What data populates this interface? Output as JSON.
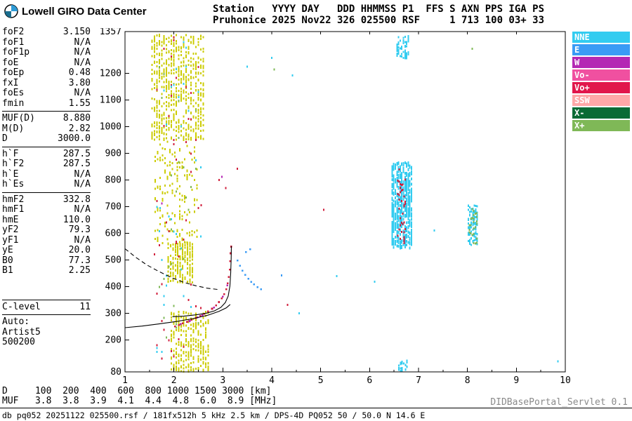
{
  "header": {
    "logo_text": "Lowell GIRO Data Center",
    "line1": "Station   YYYY DAY   DDD HHMMSS P1  FFS S AXN PPS IGA PS",
    "line2": "Pruhonice 2025 Nov22 326 025500 RSF     1 713 100 03+ 33"
  },
  "parameters": {
    "groups": [
      {
        "divider_before": false,
        "divider_after": true,
        "gap_before": false,
        "rows": [
          {
            "label": "foF2",
            "value": "3.150"
          },
          {
            "label": "foF1",
            "value": "N/A"
          },
          {
            "label": "foF1p",
            "value": "N/A"
          },
          {
            "label": "foE",
            "value": "N/A"
          },
          {
            "label": "foEp",
            "value": "0.48"
          },
          {
            "label": "fxI",
            "value": "3.80"
          },
          {
            "label": "foEs",
            "value": "N/A"
          },
          {
            "label": "fmin",
            "value": "1.55"
          }
        ]
      },
      {
        "divider_before": false,
        "divider_after": true,
        "gap_before": false,
        "rows": [
          {
            "label": "MUF(D)",
            "value": "8.880"
          },
          {
            "label": "M(D)",
            "value": "2.82"
          },
          {
            "label": "D",
            "value": "3000.0"
          }
        ]
      },
      {
        "divider_before": false,
        "divider_after": true,
        "gap_before": false,
        "rows": [
          {
            "label": "h`F",
            "value": "287.5"
          },
          {
            "label": "h`F2",
            "value": "287.5"
          },
          {
            "label": "h`E",
            "value": "N/A"
          },
          {
            "label": "h`Es",
            "value": "N/A"
          }
        ]
      },
      {
        "divider_before": false,
        "divider_after": false,
        "gap_before": false,
        "rows": [
          {
            "label": "hmF2",
            "value": "332.8"
          },
          {
            "label": "hmF1",
            "value": "N/A"
          },
          {
            "label": "hmE",
            "value": "110.0"
          },
          {
            "label": "yF2",
            "value": "79.3"
          },
          {
            "label": "yF1",
            "value": "N/A"
          },
          {
            "label": "yE",
            "value": "20.0"
          },
          {
            "label": "B0",
            "value": "77.3"
          },
          {
            "label": "B1",
            "value": "2.25"
          }
        ]
      },
      {
        "divider_before": true,
        "divider_after": true,
        "gap_before": true,
        "rows": [
          {
            "label": "C-level",
            "value": "11"
          }
        ]
      }
    ],
    "auto_lines": [
      "Auto:",
      "Artist5",
      "500200"
    ]
  },
  "chart_data": {
    "type": "scatter",
    "title": "Pruhonice ionogram 2025 Nov22 326 025500 RSF",
    "xlabel": "[MHz]",
    "ylabel": "[km]",
    "xlim": [
      1,
      10
    ],
    "ylim": [
      80,
      1357
    ],
    "x_ticks": [
      1,
      2,
      3,
      4,
      5,
      6,
      7,
      8,
      9,
      10
    ],
    "x_minor_step": 0.5,
    "y_tick_labels": [
      1357,
      1200,
      1100,
      1000,
      900,
      800,
      700,
      600,
      500,
      400,
      300,
      200,
      80
    ],
    "grid": false,
    "legend_position": "right-outside",
    "legend": [
      {
        "label": "NNE",
        "color": "#33CCF0"
      },
      {
        "label": "E",
        "color": "#3A9BF5"
      },
      {
        "label": "W",
        "color": "#B428B4"
      },
      {
        "label": "Vo-",
        "color": "#F050A0"
      },
      {
        "label": "Vo+",
        "color": "#E1174B"
      },
      {
        "label": "SSW",
        "color": "#FFA8A8"
      },
      {
        "label": "X-",
        "color": "#0A6B35"
      },
      {
        "label": "X+",
        "color": "#7FB857"
      }
    ],
    "echo_clusters": [
      {
        "name": "spread-f-upper",
        "color": "#CCCC00",
        "f_range": [
          1.55,
          2.62
        ],
        "h_range": [
          950,
          1345
        ],
        "n": 650,
        "f_snap": 0.05,
        "seed": 11,
        "dash": [
          2,
          3
        ]
      },
      {
        "name": "spread-f-mid",
        "color": "#CCCC00",
        "f_range": [
          1.62,
          2.45
        ],
        "h_range": [
          560,
          950
        ],
        "n": 170,
        "f_snap": 0.05,
        "seed": 22,
        "dash": [
          2,
          3
        ]
      },
      {
        "name": "spread-f-core",
        "color": "#CCCC00",
        "f_range": [
          1.88,
          2.38
        ],
        "h_range": [
          415,
          565
        ],
        "n": 240,
        "f_snap": 0.05,
        "seed": 33,
        "dash": [
          2,
          3
        ]
      },
      {
        "name": "spread-e-lower",
        "color": "#CCCC00",
        "f_range": [
          1.95,
          2.68
        ],
        "h_range": [
          80,
          305
        ],
        "n": 300,
        "f_snap": 0.05,
        "seed": 44,
        "dash": [
          2,
          3
        ]
      },
      {
        "name": "spread-sprinkle-red",
        "color": "#D01F3C",
        "f_range": [
          1.6,
          2.62
        ],
        "h_range": [
          100,
          1340
        ],
        "n": 48,
        "f_snap": 0.05,
        "seed": 55,
        "dash": [
          2,
          3
        ]
      },
      {
        "name": "spread-sprinkle-cyan",
        "color": "#33CCF0",
        "f_range": [
          1.65,
          2.55
        ],
        "h_range": [
          150,
          1320
        ],
        "n": 34,
        "f_snap": 0.05,
        "seed": 66,
        "dash": [
          2,
          3
        ]
      },
      {
        "name": "spread-sprinkle-green",
        "color": "#7FB857",
        "f_range": [
          1.7,
          2.5
        ],
        "h_range": [
          200,
          1300
        ],
        "n": 26,
        "f_snap": 0.05,
        "seed": 77,
        "dash": [
          2,
          3
        ]
      },
      {
        "name": "f2-echo-main",
        "color": "#33CCF0",
        "f_range": [
          6.46,
          6.86
        ],
        "h_range": [
          545,
          865
        ],
        "n": 560,
        "f_snap": 0.033,
        "seed": 88,
        "dash": [
          2,
          4
        ]
      },
      {
        "name": "f2-echo-main-red",
        "color": "#D01F3C",
        "f_range": [
          6.58,
          6.72
        ],
        "h_range": [
          560,
          850
        ],
        "n": 40,
        "f_snap": 0.025,
        "seed": 99,
        "dash": [
          2,
          3
        ]
      },
      {
        "name": "f2-echo-upper",
        "color": "#33CCF0",
        "f_range": [
          6.56,
          6.78
        ],
        "h_range": [
          1255,
          1340
        ],
        "n": 70,
        "f_snap": 0.033,
        "seed": 111,
        "dash": [
          2,
          3
        ]
      },
      {
        "name": "f2-echo-second",
        "color": "#33CCF0",
        "f_range": [
          8.02,
          8.2
        ],
        "h_range": [
          555,
          705
        ],
        "n": 110,
        "f_snap": 0.03,
        "seed": 122,
        "dash": [
          2,
          3
        ]
      },
      {
        "name": "f2-echo-second-green",
        "color": "#7FB857",
        "f_range": [
          8.04,
          8.18
        ],
        "h_range": [
          560,
          695
        ],
        "n": 28,
        "f_snap": 0.03,
        "seed": 133,
        "dash": [
          2,
          3
        ]
      },
      {
        "name": "bottom-noise-cyan",
        "color": "#33CCF0",
        "f_range": [
          6.6,
          6.78
        ],
        "h_range": [
          80,
          125
        ],
        "n": 26,
        "f_snap": 0.033,
        "seed": 144,
        "dash": [
          2,
          3
        ]
      }
    ],
    "trace_dots": [
      {
        "name": "f-trace-o-mode",
        "color": "#D01F3C",
        "points": [
          [
            2.02,
            250
          ],
          [
            2.1,
            256
          ],
          [
            2.18,
            262
          ],
          [
            2.27,
            268
          ],
          [
            2.36,
            275
          ],
          [
            2.45,
            282
          ],
          [
            2.54,
            290
          ],
          [
            2.62,
            298
          ],
          [
            2.7,
            307
          ],
          [
            2.78,
            317
          ],
          [
            2.86,
            329
          ],
          [
            2.92,
            342
          ],
          [
            2.98,
            356
          ],
          [
            3.03,
            372
          ],
          [
            3.07,
            390
          ],
          [
            3.1,
            412
          ],
          [
            3.12,
            436
          ],
          [
            3.14,
            464
          ],
          [
            3.15,
            495
          ],
          [
            3.16,
            525
          ],
          [
            3.17,
            550
          ]
        ]
      },
      {
        "name": "f-trace-w",
        "color": "#B428B4",
        "points": [
          [
            2.14,
            259
          ],
          [
            2.32,
            271
          ],
          [
            2.48,
            285
          ],
          [
            2.58,
            293
          ],
          [
            2.82,
            322
          ],
          [
            3.0,
            362
          ],
          [
            3.09,
            405
          ]
        ]
      },
      {
        "name": "e-arc-blue",
        "color": "#3A9BF5",
        "points": [
          [
            3.3,
            498
          ],
          [
            3.35,
            478
          ],
          [
            3.4,
            460
          ],
          [
            3.46,
            444
          ],
          [
            3.52,
            430
          ],
          [
            3.58,
            418
          ],
          [
            3.64,
            408
          ],
          [
            3.71,
            398
          ],
          [
            3.78,
            390
          ],
          [
            3.47,
            530
          ],
          [
            3.56,
            540
          ]
        ]
      }
    ],
    "single_points": [
      [
        4.05,
        1215,
        "#7FB857"
      ],
      [
        4.0,
        1258,
        "#33CCF0"
      ],
      [
        4.42,
        1192,
        "#33CCF0"
      ],
      [
        3.5,
        1225,
        "#33CCF0"
      ],
      [
        2.92,
        800,
        "#D01F3C"
      ],
      [
        2.98,
        812,
        "#B428B4"
      ],
      [
        3.06,
        770,
        "#D01F3C"
      ],
      [
        3.3,
        842,
        "#D01F3C"
      ],
      [
        2.56,
        705,
        "#D01F3C"
      ],
      [
        1.75,
        712,
        "#B428B4"
      ],
      [
        1.72,
        695,
        "#33CCF0"
      ],
      [
        4.32,
        332,
        "#D01F3C"
      ],
      [
        4.56,
        300,
        "#33CCF0"
      ],
      [
        5.06,
        688,
        "#D01F3C"
      ],
      [
        5.33,
        440,
        "#33CCF0"
      ],
      [
        6.1,
        418,
        "#33CCF0"
      ],
      [
        4.2,
        442,
        "#3A9BF5"
      ],
      [
        7.32,
        610,
        "#33CCF0"
      ],
      [
        8.1,
        1292,
        "#7FB857"
      ],
      [
        9.85,
        120,
        "#33CCF0"
      ]
    ],
    "fitted_traces": [
      {
        "name": "hf-trace-fit",
        "style": "solid",
        "points": [
          [
            1.97,
            287
          ],
          [
            2.2,
            289
          ],
          [
            2.45,
            294
          ],
          [
            2.66,
            300
          ],
          [
            2.83,
            309
          ],
          [
            2.96,
            322
          ],
          [
            3.05,
            340
          ],
          [
            3.11,
            365
          ],
          [
            3.145,
            402
          ],
          [
            3.16,
            450
          ],
          [
            3.17,
            505
          ],
          [
            3.175,
            552
          ]
        ]
      },
      {
        "name": "extrapolation",
        "style": "dashed",
        "points": [
          [
            1.0,
            542
          ],
          [
            1.22,
            510
          ],
          [
            1.45,
            481
          ],
          [
            1.7,
            456
          ],
          [
            1.95,
            434
          ],
          [
            2.2,
            416
          ],
          [
            2.45,
            403
          ],
          [
            2.68,
            394
          ],
          [
            2.9,
            389
          ]
        ]
      },
      {
        "name": "true-height-profile",
        "style": "solid",
        "points": [
          [
            1.0,
            246
          ],
          [
            1.35,
            252
          ],
          [
            1.7,
            260
          ],
          [
            2.05,
            269
          ],
          [
            2.4,
            280
          ],
          [
            2.7,
            293
          ],
          [
            2.92,
            307
          ],
          [
            3.07,
            320
          ],
          [
            3.15,
            333
          ]
        ]
      }
    ],
    "muf_table": {
      "rows": [
        {
          "label": "D",
          "values": [
            "100",
            "200",
            "400",
            "600",
            "800",
            "1000",
            "1500",
            "3000"
          ],
          "unit": "[km]"
        },
        {
          "label": "MUF",
          "values": [
            "3.8",
            "3.8",
            "3.9",
            "4.1",
            "4.4",
            "4.8",
            "6.0",
            "8.9"
          ],
          "unit": "[MHz]"
        }
      ]
    }
  },
  "footer": {
    "status": "db pq052 20251122 025500.rsf / 181fx512h 5 kHz 2.5 km / DPS-4D PQ052 50 / 50.0 N 14.6 E",
    "servlet": "DIDBasePortal_Servlet 0.1"
  }
}
